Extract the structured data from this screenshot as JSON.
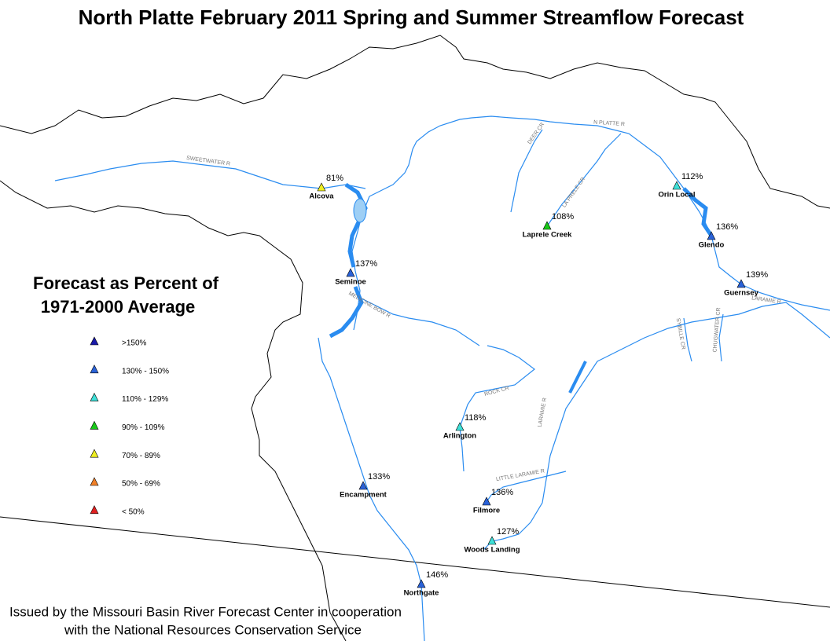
{
  "title": "North Platte February 2011 Spring and Summer Streamflow Forecast",
  "legend": {
    "title": [
      "Forecast as Percent of",
      "1971-2000 Average"
    ],
    "entries": [
      {
        "label": ">150%",
        "color": "#1a1aa8"
      },
      {
        "label": "130% - 150%",
        "color": "#2a62d8"
      },
      {
        "label": "110% - 129%",
        "color": "#3ee0d8"
      },
      {
        "label": "90% - 109%",
        "color": "#18c818"
      },
      {
        "label": "70% - 89%",
        "color": "#eeee22"
      },
      {
        "label": "50% - 69%",
        "color": "#f08028"
      },
      {
        "label": "< 50%",
        "color": "#e02020"
      }
    ]
  },
  "stations": [
    {
      "name": "Alcova",
      "percent": "81%",
      "color": "#eeee22"
    },
    {
      "name": "Seminoe",
      "percent": "137%",
      "color": "#2a62d8"
    },
    {
      "name": "Laprele Creek",
      "percent": "108%",
      "color": "#18c818"
    },
    {
      "name": "Orin Local",
      "percent": "112%",
      "color": "#3ee0d8"
    },
    {
      "name": "Glendo",
      "percent": "136%",
      "color": "#2a62d8"
    },
    {
      "name": "Guernsey",
      "percent": "139%",
      "color": "#2a62d8"
    },
    {
      "name": "Arlington",
      "percent": "118%",
      "color": "#3ee0d8"
    },
    {
      "name": "Encampment",
      "percent": "133%",
      "color": "#2a62d8"
    },
    {
      "name": "Filmore",
      "percent": "136%",
      "color": "#2a62d8"
    },
    {
      "name": "Woods Landing",
      "percent": "127%",
      "color": "#3ee0d8"
    },
    {
      "name": "Northgate",
      "percent": "146%",
      "color": "#2a62d8"
    }
  ],
  "rivers": [
    "SWEETWATER R",
    "N PLATTE R",
    "DEER CR",
    "LA PRELE CR",
    "MEDICINE BOW R",
    "ROCK CR",
    "LARAMIE R",
    "LITTLE LARAMIE R",
    "SYBILLE CR",
    "CHUGWATER CR",
    "LARAMIE R"
  ],
  "footer": [
    "Issued by the Missouri Basin River Forecast Center in cooperation",
    "with the National Resources Conservation Service"
  ]
}
